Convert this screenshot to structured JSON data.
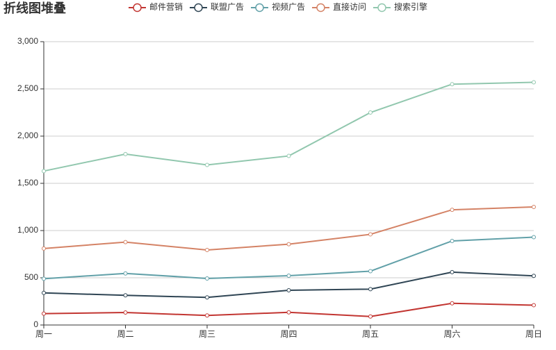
{
  "chart_data": {
    "type": "line",
    "title": "折线图堆叠",
    "stacked": true,
    "categories": [
      "周一",
      "周二",
      "周三",
      "周四",
      "周五",
      "周六",
      "周日"
    ],
    "series": [
      {
        "name": "邮件营销",
        "color": "#c23531",
        "values": [
          120,
          132,
          101,
          134,
          90,
          230,
          210
        ]
      },
      {
        "name": "联盟广告",
        "color": "#2f4554",
        "values": [
          220,
          182,
          191,
          234,
          290,
          330,
          310
        ]
      },
      {
        "name": "视频广告",
        "color": "#61a0a8",
        "values": [
          150,
          232,
          201,
          154,
          190,
          330,
          410
        ]
      },
      {
        "name": "直接访问",
        "color": "#d48265",
        "values": [
          320,
          332,
          301,
          334,
          390,
          330,
          320
        ]
      },
      {
        "name": "搜索引擎",
        "color": "#91c7ae",
        "values": [
          820,
          932,
          901,
          934,
          1290,
          1330,
          1320
        ]
      }
    ],
    "ylim": [
      0,
      3000
    ],
    "yticks": [
      0,
      {
        "value": 500,
        "label": "500"
      },
      {
        "value": 1000,
        "label": "1,000"
      },
      {
        "value": 1500,
        "label": "1,500"
      },
      {
        "value": 2000,
        "label": "2,000"
      },
      {
        "value": 2500,
        "label": "2,500"
      },
      {
        "value": 3000,
        "label": "3,000"
      }
    ],
    "grid": true,
    "legend": "top"
  }
}
